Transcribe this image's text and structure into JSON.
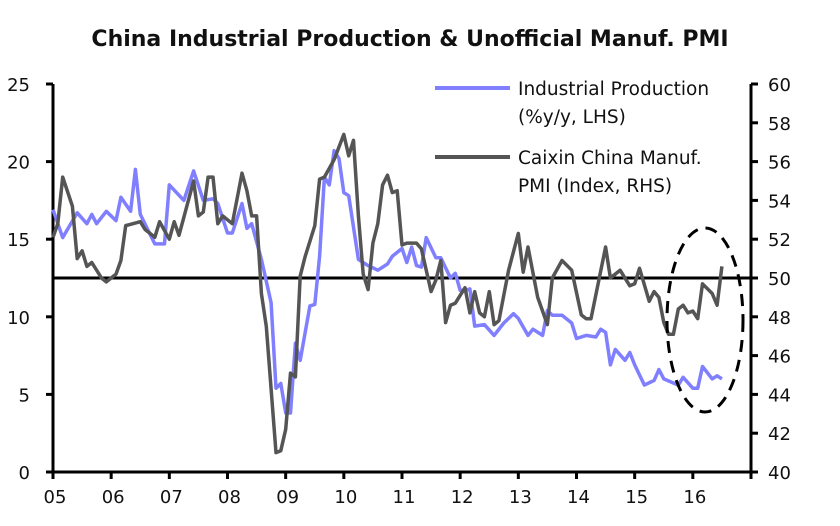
{
  "chart_data": {
    "type": "line",
    "title": "China Industrial Production & Unofficial Manuf. PMI",
    "x_tick_labels": [
      "05",
      "06",
      "07",
      "08",
      "09",
      "10",
      "11",
      "12",
      "13",
      "14",
      "15",
      "16"
    ],
    "xlim": [
      "2005-01",
      "2017-01"
    ],
    "y_left": {
      "ylim": [
        0,
        25
      ],
      "ticks": [
        "0",
        "5",
        "10",
        "15",
        "20",
        "25"
      ]
    },
    "y_right": {
      "ylim": [
        40,
        60
      ],
      "ticks": [
        "40",
        "42",
        "44",
        "46",
        "48",
        "50",
        "52",
        "54",
        "56",
        "58",
        "60"
      ]
    },
    "reference_line": {
      "axis": "right",
      "value": 50
    },
    "annotation": "dashed ellipse around 2015-2016 data",
    "grid": false,
    "legend_position": "top-right",
    "series": [
      {
        "name": "Industrial Production",
        "name_line2": "(%y/y, LHS)",
        "axis": "left",
        "color": "#7f7fff",
        "points": [
          [
            "2005-01",
            16.9
          ],
          [
            "2005-03",
            15.1
          ],
          [
            "2005-06",
            16.7
          ],
          [
            "2005-08",
            16.0
          ],
          [
            "2005-09",
            16.6
          ],
          [
            "2005-10",
            16.0
          ],
          [
            "2005-12",
            16.8
          ],
          [
            "2006-02",
            16.2
          ],
          [
            "2006-03",
            17.7
          ],
          [
            "2006-05",
            16.8
          ],
          [
            "2006-06",
            19.5
          ],
          [
            "2006-07",
            16.6
          ],
          [
            "2006-10",
            14.7
          ],
          [
            "2006-12",
            14.7
          ],
          [
            "2007-01",
            18.5
          ],
          [
            "2007-04",
            17.5
          ],
          [
            "2007-06",
            19.4
          ],
          [
            "2007-08",
            17.5
          ],
          [
            "2007-10",
            17.6
          ],
          [
            "2007-11",
            17.3
          ],
          [
            "2008-01",
            15.4
          ],
          [
            "2008-02",
            15.4
          ],
          [
            "2008-04",
            17.3
          ],
          [
            "2008-05",
            15.7
          ],
          [
            "2008-06",
            16.0
          ],
          [
            "2008-08",
            13.7
          ],
          [
            "2008-10",
            10.9
          ],
          [
            "2008-11",
            5.4
          ],
          [
            "2008-12",
            5.7
          ],
          [
            "2009-01",
            3.8
          ],
          [
            "2009-02",
            3.8
          ],
          [
            "2009-03",
            8.3
          ],
          [
            "2009-04",
            7.2
          ],
          [
            "2009-06",
            10.7
          ],
          [
            "2009-07",
            10.8
          ],
          [
            "2009-08",
            13.9
          ],
          [
            "2009-09",
            19.0
          ],
          [
            "2009-10",
            18.5
          ],
          [
            "2009-11",
            20.7
          ],
          [
            "2009-12",
            20.2
          ],
          [
            "2010-01",
            18.0
          ],
          [
            "2010-02",
            17.8
          ],
          [
            "2010-04",
            13.7
          ],
          [
            "2010-06",
            13.3
          ],
          [
            "2010-08",
            13.0
          ],
          [
            "2010-10",
            13.4
          ],
          [
            "2010-11",
            13.9
          ],
          [
            "2011-01",
            14.4
          ],
          [
            "2011-02",
            13.5
          ],
          [
            "2011-03",
            14.5
          ],
          [
            "2011-04",
            13.3
          ],
          [
            "2011-05",
            13.2
          ],
          [
            "2011-06",
            15.1
          ],
          [
            "2011-08",
            13.8
          ],
          [
            "2011-09",
            13.8
          ],
          [
            "2011-11",
            12.5
          ],
          [
            "2011-12",
            12.8
          ],
          [
            "2012-01",
            11.7
          ],
          [
            "2012-02",
            11.7
          ],
          [
            "2012-03",
            11.8
          ],
          [
            "2012-04",
            9.4
          ],
          [
            "2012-06",
            9.5
          ],
          [
            "2012-08",
            8.8
          ],
          [
            "2012-10",
            9.6
          ],
          [
            "2012-12",
            10.2
          ],
          [
            "2013-01",
            9.9
          ],
          [
            "2013-03",
            8.8
          ],
          [
            "2013-04",
            9.2
          ],
          [
            "2013-06",
            8.8
          ],
          [
            "2013-07",
            10.4
          ],
          [
            "2013-08",
            10.1
          ],
          [
            "2013-10",
            10.1
          ],
          [
            "2013-12",
            9.6
          ],
          [
            "2014-01",
            8.6
          ],
          [
            "2014-03",
            8.8
          ],
          [
            "2014-05",
            8.7
          ],
          [
            "2014-06",
            9.2
          ],
          [
            "2014-07",
            9.0
          ],
          [
            "2014-08",
            6.9
          ],
          [
            "2014-09",
            7.9
          ],
          [
            "2014-11",
            7.2
          ],
          [
            "2014-12",
            7.7
          ],
          [
            "2015-01",
            6.9
          ],
          [
            "2015-03",
            5.6
          ],
          [
            "2015-05",
            5.9
          ],
          [
            "2015-06",
            6.6
          ],
          [
            "2015-07",
            6.0
          ],
          [
            "2015-10",
            5.6
          ],
          [
            "2015-11",
            6.1
          ],
          [
            "2016-01",
            5.4
          ],
          [
            "2016-02",
            5.4
          ],
          [
            "2016-03",
            6.8
          ],
          [
            "2016-05",
            6.0
          ],
          [
            "2016-06",
            6.2
          ],
          [
            "2016-07",
            6.0
          ]
        ]
      },
      {
        "name": "Caixin China Manuf.",
        "name_line2": "PMI (Index, RHS)",
        "axis": "right",
        "color": "#555555",
        "points": [
          [
            "2005-01",
            52.1
          ],
          [
            "2005-02",
            52.8
          ],
          [
            "2005-03",
            55.2
          ],
          [
            "2005-05",
            53.7
          ],
          [
            "2005-06",
            51.0
          ],
          [
            "2005-07",
            51.4
          ],
          [
            "2005-08",
            50.6
          ],
          [
            "2005-09",
            50.8
          ],
          [
            "2005-11",
            50.0
          ],
          [
            "2005-12",
            49.8
          ],
          [
            "2006-02",
            50.2
          ],
          [
            "2006-03",
            50.9
          ],
          [
            "2006-04",
            52.7
          ],
          [
            "2006-07",
            52.9
          ],
          [
            "2006-08",
            52.5
          ],
          [
            "2006-10",
            52.1
          ],
          [
            "2006-11",
            52.9
          ],
          [
            "2007-01",
            52.0
          ],
          [
            "2007-02",
            52.9
          ],
          [
            "2007-03",
            52.2
          ],
          [
            "2007-06",
            55.0
          ],
          [
            "2007-07",
            53.2
          ],
          [
            "2007-08",
            53.4
          ],
          [
            "2007-09",
            55.2
          ],
          [
            "2007-10",
            55.2
          ],
          [
            "2007-11",
            52.8
          ],
          [
            "2007-12",
            53.2
          ],
          [
            "2008-02",
            52.8
          ],
          [
            "2008-04",
            55.4
          ],
          [
            "2008-05",
            54.5
          ],
          [
            "2008-06",
            53.2
          ],
          [
            "2008-07",
            53.2
          ],
          [
            "2008-08",
            49.2
          ],
          [
            "2008-09",
            47.5
          ],
          [
            "2008-11",
            41.0
          ],
          [
            "2008-12",
            41.1
          ],
          [
            "2009-01",
            42.2
          ],
          [
            "2009-02",
            45.1
          ],
          [
            "2009-03",
            44.9
          ],
          [
            "2009-04",
            50.1
          ],
          [
            "2009-05",
            51.1
          ],
          [
            "2009-07",
            52.7
          ],
          [
            "2009-08",
            55.1
          ],
          [
            "2009-09",
            55.2
          ],
          [
            "2009-11",
            56.1
          ],
          [
            "2010-01",
            57.4
          ],
          [
            "2010-02",
            56.3
          ],
          [
            "2010-03",
            57.1
          ],
          [
            "2010-04",
            53.2
          ],
          [
            "2010-05",
            50.2
          ],
          [
            "2010-06",
            49.4
          ],
          [
            "2010-07",
            51.8
          ],
          [
            "2010-08",
            52.8
          ],
          [
            "2010-09",
            54.8
          ],
          [
            "2010-10",
            55.3
          ],
          [
            "2010-11",
            54.4
          ],
          [
            "2010-12",
            54.5
          ],
          [
            "2011-01",
            51.7
          ],
          [
            "2011-02",
            51.8
          ],
          [
            "2011-04",
            51.8
          ],
          [
            "2011-05",
            51.5
          ],
          [
            "2011-07",
            49.3
          ],
          [
            "2011-08",
            49.9
          ],
          [
            "2011-09",
            50.9
          ],
          [
            "2011-10",
            47.7
          ],
          [
            "2011-11",
            48.6
          ],
          [
            "2011-12",
            48.7
          ],
          [
            "2012-02",
            49.5
          ],
          [
            "2012-03",
            48.2
          ],
          [
            "2012-04",
            49.3
          ],
          [
            "2012-05",
            48.2
          ],
          [
            "2012-06",
            48.0
          ],
          [
            "2012-07",
            49.3
          ],
          [
            "2012-08",
            47.6
          ],
          [
            "2012-09",
            47.8
          ],
          [
            "2012-11",
            50.4
          ],
          [
            "2013-01",
            52.3
          ],
          [
            "2013-02",
            50.3
          ],
          [
            "2013-03",
            51.6
          ],
          [
            "2013-05",
            49.0
          ],
          [
            "2013-07",
            47.6
          ],
          [
            "2013-08",
            50.0
          ],
          [
            "2013-10",
            50.9
          ],
          [
            "2013-12",
            50.4
          ],
          [
            "2014-02",
            48.1
          ],
          [
            "2014-03",
            47.9
          ],
          [
            "2014-04",
            47.9
          ],
          [
            "2014-07",
            51.6
          ],
          [
            "2014-08",
            50.0
          ],
          [
            "2014-10",
            50.4
          ],
          [
            "2014-12",
            49.6
          ],
          [
            "2015-01",
            49.7
          ],
          [
            "2015-02",
            50.5
          ],
          [
            "2015-04",
            48.8
          ],
          [
            "2015-05",
            49.3
          ],
          [
            "2015-06",
            49.0
          ],
          [
            "2015-07",
            47.7
          ],
          [
            "2015-08",
            47.1
          ],
          [
            "2015-09",
            47.1
          ],
          [
            "2015-10",
            48.4
          ],
          [
            "2015-11",
            48.6
          ],
          [
            "2015-12",
            48.2
          ],
          [
            "2016-01",
            48.3
          ],
          [
            "2016-02",
            47.9
          ],
          [
            "2016-03",
            49.7
          ],
          [
            "2016-05",
            49.2
          ],
          [
            "2016-06",
            48.6
          ],
          [
            "2016-07",
            50.6
          ]
        ]
      }
    ]
  }
}
